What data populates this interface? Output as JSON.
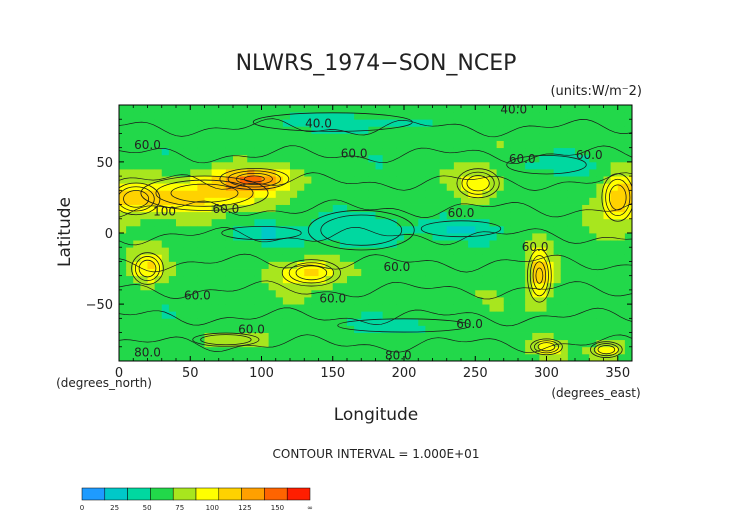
{
  "chart_data": {
    "type": "heatmap",
    "title": "NLWRS_1974−SON_NCEP",
    "units_label": "(units:W/m⁻2)",
    "xlabel": "Longitude",
    "ylabel": "Latitude",
    "x_unit_label": "(degrees_east)",
    "y_unit_label": "(degrees_north)",
    "xlim": [
      0,
      360
    ],
    "ylim": [
      -90,
      90
    ],
    "x_ticks": [
      0,
      50,
      100,
      150,
      200,
      250,
      300,
      350
    ],
    "y_ticks": [
      -50,
      0,
      50
    ],
    "contour_interval_text": "CONTOUR INTERVAL = 1.000E+01",
    "contour_labels": [
      {
        "text": "40.0",
        "lon": 140,
        "lat": 77
      },
      {
        "text": "40.0",
        "lon": 277,
        "lat": 87
      },
      {
        "text": "60.0",
        "lon": 20,
        "lat": 62
      },
      {
        "text": "60.0",
        "lon": 165,
        "lat": 56
      },
      {
        "text": "60.0",
        "lon": 283,
        "lat": 52
      },
      {
        "text": "60.0",
        "lon": 330,
        "lat": 55
      },
      {
        "text": "60.0",
        "lon": 75,
        "lat": 17
      },
      {
        "text": "100",
        "lon": 32,
        "lat": 15
      },
      {
        "text": "60.0",
        "lon": 240,
        "lat": 14
      },
      {
        "text": "60.0",
        "lon": 292,
        "lat": -10
      },
      {
        "text": "60.0",
        "lon": 195,
        "lat": -24
      },
      {
        "text": "60.0",
        "lon": 55,
        "lat": -44
      },
      {
        "text": "60.0",
        "lon": 150,
        "lat": -46
      },
      {
        "text": "60.0",
        "lon": 246,
        "lat": -64
      },
      {
        "text": "60.0",
        "lon": 93,
        "lat": -68
      },
      {
        "text": "80.0",
        "lon": 20,
        "lat": -84
      },
      {
        "text": "80.0",
        "lon": 196,
        "lat": -86
      }
    ],
    "blobs": [
      {
        "lon": 60,
        "lat": 28,
        "rlon": 48,
        "rlat": 13,
        "v": 112
      },
      {
        "lon": 95,
        "lat": 38,
        "rlon": 26,
        "rlat": 8,
        "v": 125
      },
      {
        "lon": 12,
        "lat": 24,
        "rlon": 18,
        "rlat": 12,
        "v": 100
      },
      {
        "lon": 20,
        "lat": -25,
        "rlon": 12,
        "rlat": 12,
        "v": 105
      },
      {
        "lon": 135,
        "lat": -28,
        "rlon": 22,
        "rlat": 10,
        "v": 112
      },
      {
        "lon": 252,
        "lat": 35,
        "rlon": 16,
        "rlat": 11,
        "v": 100
      },
      {
        "lon": 350,
        "lat": 25,
        "rlon": 12,
        "rlat": 18,
        "v": 108
      },
      {
        "lon": 295,
        "lat": -30,
        "rlon": 9,
        "rlat": 20,
        "v": 115
      },
      {
        "lon": 300,
        "lat": -80,
        "rlon": 12,
        "rlat": 6,
        "v": 100
      },
      {
        "lon": 342,
        "lat": -82,
        "rlon": 12,
        "rlat": 6,
        "v": 100
      },
      {
        "lon": 75,
        "lat": -75,
        "rlon": 25,
        "rlat": 5,
        "v": 85
      },
      {
        "lon": 170,
        "lat": 2,
        "rlon": 40,
        "rlat": 15,
        "v": 35
      },
      {
        "lon": 100,
        "lat": 0,
        "rlon": 30,
        "rlat": 5,
        "v": 40
      },
      {
        "lon": 240,
        "lat": 3,
        "rlon": 30,
        "rlat": 6,
        "v": 40
      },
      {
        "lon": 300,
        "lat": 48,
        "rlon": 30,
        "rlat": 7,
        "v": 45
      },
      {
        "lon": 200,
        "lat": -65,
        "rlon": 50,
        "rlat": 5,
        "v": 45
      },
      {
        "lon": 150,
        "lat": 78,
        "rlon": 60,
        "rlat": 7,
        "v": 42
      }
    ],
    "colorbar": {
      "labels": [
        "0",
        "25",
        "50",
        "75",
        "100",
        "125",
        "150",
        "∞"
      ],
      "colors": [
        "#1e9bff",
        "#00c8c8",
        "#00d8a0",
        "#22d84a",
        "#a8e61e",
        "#ffff00",
        "#ffd200",
        "#ffa000",
        "#ff6400",
        "#ff1e00"
      ]
    }
  }
}
